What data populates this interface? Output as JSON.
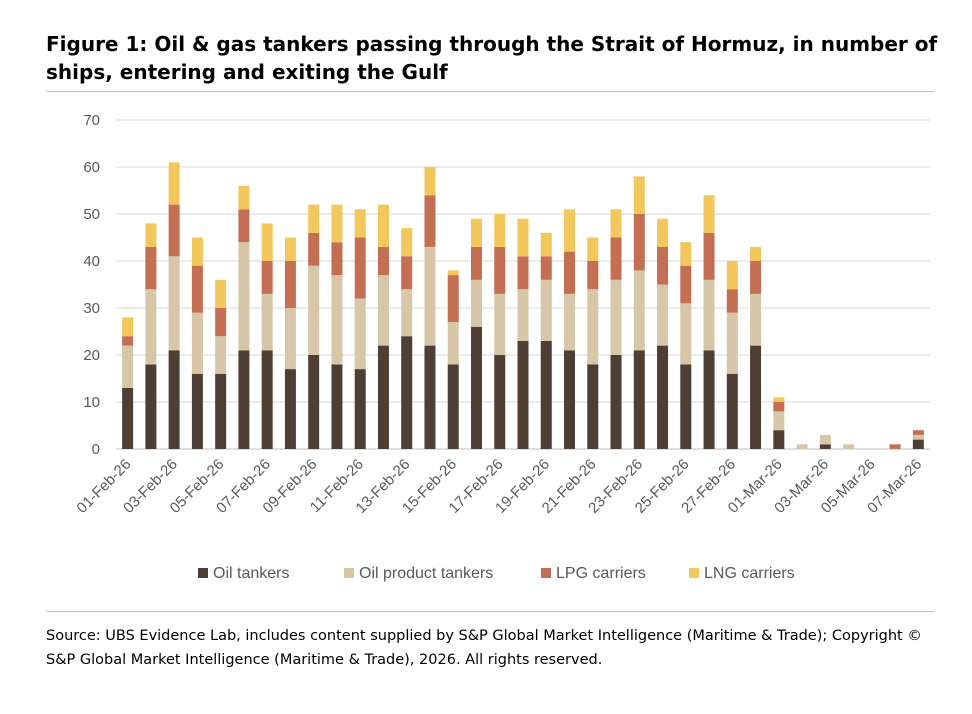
{
  "figure": {
    "title": "Figure 1: Oil & gas tankers passing through the Strait of Hormuz, in number of ships, entering and exiting the Gulf",
    "source": "Source: UBS Evidence Lab, includes content supplied by S&P Global Market Intelligence (Maritime & Trade); Copyright © S&P Global Market Intelligence (Maritime & Trade), 2026. All rights reserved."
  },
  "chart_data": {
    "type": "bar",
    "stacked": true,
    "title": "Oil & gas tankers passing through the Strait of Hormuz, in number of ships, entering and exiting the Gulf",
    "xlabel": "",
    "ylabel": "",
    "ylim": [
      0,
      70
    ],
    "yticks": [
      0,
      10,
      20,
      30,
      40,
      50,
      60,
      70
    ],
    "grid": true,
    "legend_position": "bottom",
    "categories": [
      "01-Feb-26",
      "02-Feb-26",
      "03-Feb-26",
      "04-Feb-26",
      "05-Feb-26",
      "06-Feb-26",
      "07-Feb-26",
      "08-Feb-26",
      "09-Feb-26",
      "10-Feb-26",
      "11-Feb-26",
      "12-Feb-26",
      "13-Feb-26",
      "14-Feb-26",
      "15-Feb-26",
      "16-Feb-26",
      "17-Feb-26",
      "18-Feb-26",
      "19-Feb-26",
      "20-Feb-26",
      "21-Feb-26",
      "22-Feb-26",
      "23-Feb-26",
      "24-Feb-26",
      "25-Feb-26",
      "26-Feb-26",
      "27-Feb-26",
      "28-Feb-26",
      "01-Mar-26",
      "02-Mar-26",
      "03-Mar-26",
      "04-Mar-26",
      "05-Mar-26",
      "06-Mar-26",
      "07-Mar-26"
    ],
    "xtick_labels": [
      "01-Feb-26",
      "03-Feb-26",
      "05-Feb-26",
      "07-Feb-26",
      "09-Feb-26",
      "11-Feb-26",
      "13-Feb-26",
      "15-Feb-26",
      "17-Feb-26",
      "19-Feb-26",
      "21-Feb-26",
      "23-Feb-26",
      "25-Feb-26",
      "27-Feb-26",
      "01-Mar-26",
      "03-Mar-26",
      "05-Mar-26",
      "07-Mar-26"
    ],
    "series": [
      {
        "name": "Oil tankers",
        "color": "#4d3f33",
        "values": [
          13,
          18,
          21,
          16,
          16,
          21,
          21,
          17,
          20,
          18,
          17,
          22,
          24,
          22,
          18,
          26,
          20,
          23,
          23,
          21,
          18,
          20,
          21,
          22,
          18,
          21,
          16,
          22,
          4,
          0,
          1,
          0,
          0,
          0,
          2
        ]
      },
      {
        "name": "Oil product tankers",
        "color": "#d7c6a7",
        "values": [
          9,
          16,
          20,
          13,
          8,
          23,
          12,
          13,
          19,
          19,
          15,
          15,
          10,
          21,
          9,
          10,
          13,
          11,
          13,
          12,
          16,
          16,
          17,
          13,
          13,
          15,
          13,
          11,
          4,
          1,
          2,
          1,
          0,
          0,
          1
        ]
      },
      {
        "name": "LPG carriers",
        "color": "#c46e53",
        "values": [
          2,
          9,
          11,
          10,
          6,
          7,
          7,
          10,
          7,
          7,
          13,
          6,
          7,
          11,
          10,
          7,
          10,
          7,
          5,
          9,
          6,
          9,
          12,
          8,
          8,
          10,
          5,
          7,
          2,
          0,
          0,
          0,
          0,
          1,
          1
        ]
      },
      {
        "name": "LNG carriers",
        "color": "#f2c75c",
        "values": [
          4,
          5,
          9,
          6,
          6,
          5,
          8,
          5,
          6,
          8,
          6,
          9,
          6,
          6,
          1,
          6,
          7,
          8,
          5,
          9,
          5,
          6,
          8,
          6,
          5,
          8,
          6,
          3,
          1,
          0,
          0,
          0,
          0,
          0,
          0
        ]
      }
    ]
  }
}
